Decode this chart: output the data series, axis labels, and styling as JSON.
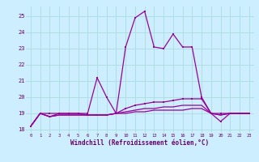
{
  "background_color": "#cceeff",
  "grid_color": "#aadddd",
  "line_color": "#990099",
  "xlabel": "Windchill (Refroidissement éolien,°C)",
  "xlim": [
    -0.5,
    23.5
  ],
  "ylim": [
    17.8,
    25.6
  ],
  "yticks": [
    18,
    19,
    20,
    21,
    22,
    23,
    24,
    25
  ],
  "xticks": [
    0,
    1,
    2,
    3,
    4,
    5,
    6,
    7,
    8,
    9,
    10,
    11,
    12,
    13,
    14,
    15,
    16,
    17,
    18,
    19,
    20,
    21,
    22,
    23
  ],
  "s1": [
    18.2,
    19.0,
    19.0,
    19.0,
    19.0,
    19.0,
    19.0,
    21.2,
    20.0,
    19.0,
    23.1,
    24.9,
    25.3,
    23.1,
    23.0,
    23.9,
    23.1,
    23.1,
    20.0,
    19.0,
    18.5,
    19.0,
    19.0,
    19.0
  ],
  "s2": [
    18.2,
    19.0,
    18.8,
    19.0,
    19.0,
    19.0,
    18.9,
    18.9,
    18.9,
    19.0,
    19.3,
    19.5,
    19.6,
    19.7,
    19.7,
    19.8,
    19.9,
    19.9,
    19.9,
    19.0,
    19.0,
    19.0,
    19.0,
    19.0
  ],
  "s3": [
    18.2,
    19.0,
    18.8,
    18.9,
    18.9,
    18.9,
    18.9,
    18.9,
    18.9,
    19.0,
    19.1,
    19.2,
    19.3,
    19.3,
    19.4,
    19.4,
    19.5,
    19.5,
    19.5,
    19.0,
    18.9,
    19.0,
    19.0,
    19.0
  ],
  "s4": [
    18.2,
    19.0,
    18.8,
    18.9,
    18.9,
    18.9,
    18.9,
    18.9,
    18.9,
    19.0,
    19.0,
    19.1,
    19.1,
    19.2,
    19.2,
    19.2,
    19.2,
    19.3,
    19.3,
    19.0,
    18.9,
    19.0,
    19.0,
    19.0
  ]
}
